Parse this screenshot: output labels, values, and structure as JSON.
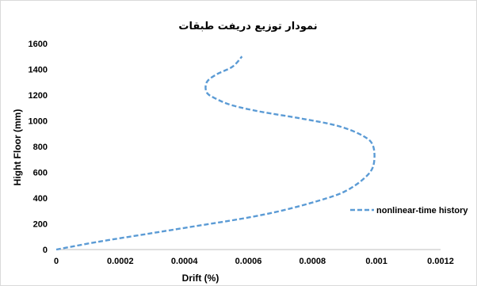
{
  "chart_data": {
    "type": "line",
    "title": "نمودار توزیع دریفت طبقات",
    "xlabel": "Drift (%)",
    "ylabel": "Hight Floor (mm)",
    "xlim": [
      0,
      0.0012
    ],
    "ylim": [
      0,
      1600
    ],
    "xticks": [
      0,
      0.0002,
      0.0004,
      0.0006,
      0.0008,
      0.001,
      0.0012
    ],
    "xtick_labels": [
      "0",
      "0.0002",
      "0.0004",
      "0.0006",
      "0.0008",
      "0.001",
      "0.0012"
    ],
    "yticks": [
      0,
      200,
      400,
      600,
      800,
      1000,
      1200,
      1400,
      1600
    ],
    "ytick_labels": [
      "0",
      "200",
      "400",
      "600",
      "800",
      "1000",
      "1200",
      "1400",
      "1600"
    ],
    "grid": false,
    "legend_position": "right",
    "series": [
      {
        "name": "nonlinear-time history",
        "color": "#5b9bd5",
        "line_style": "dashed",
        "x": [
          0,
          0.00013,
          0.00028,
          0.00043,
          0.00058,
          0.0007,
          0.00082,
          0.0009,
          0.00096,
          0.00099,
          0.00099,
          0.00096,
          0.00088,
          0.00076,
          0.00064,
          0.00055,
          0.0005,
          0.00047,
          0.00047,
          0.0005,
          0.00055,
          0.00058
        ],
        "y": [
          0,
          60,
          120,
          180,
          240,
          300,
          380,
          450,
          550,
          650,
          800,
          880,
          960,
          1020,
          1070,
          1120,
          1170,
          1220,
          1300,
          1360,
          1420,
          1500
        ]
      }
    ]
  }
}
